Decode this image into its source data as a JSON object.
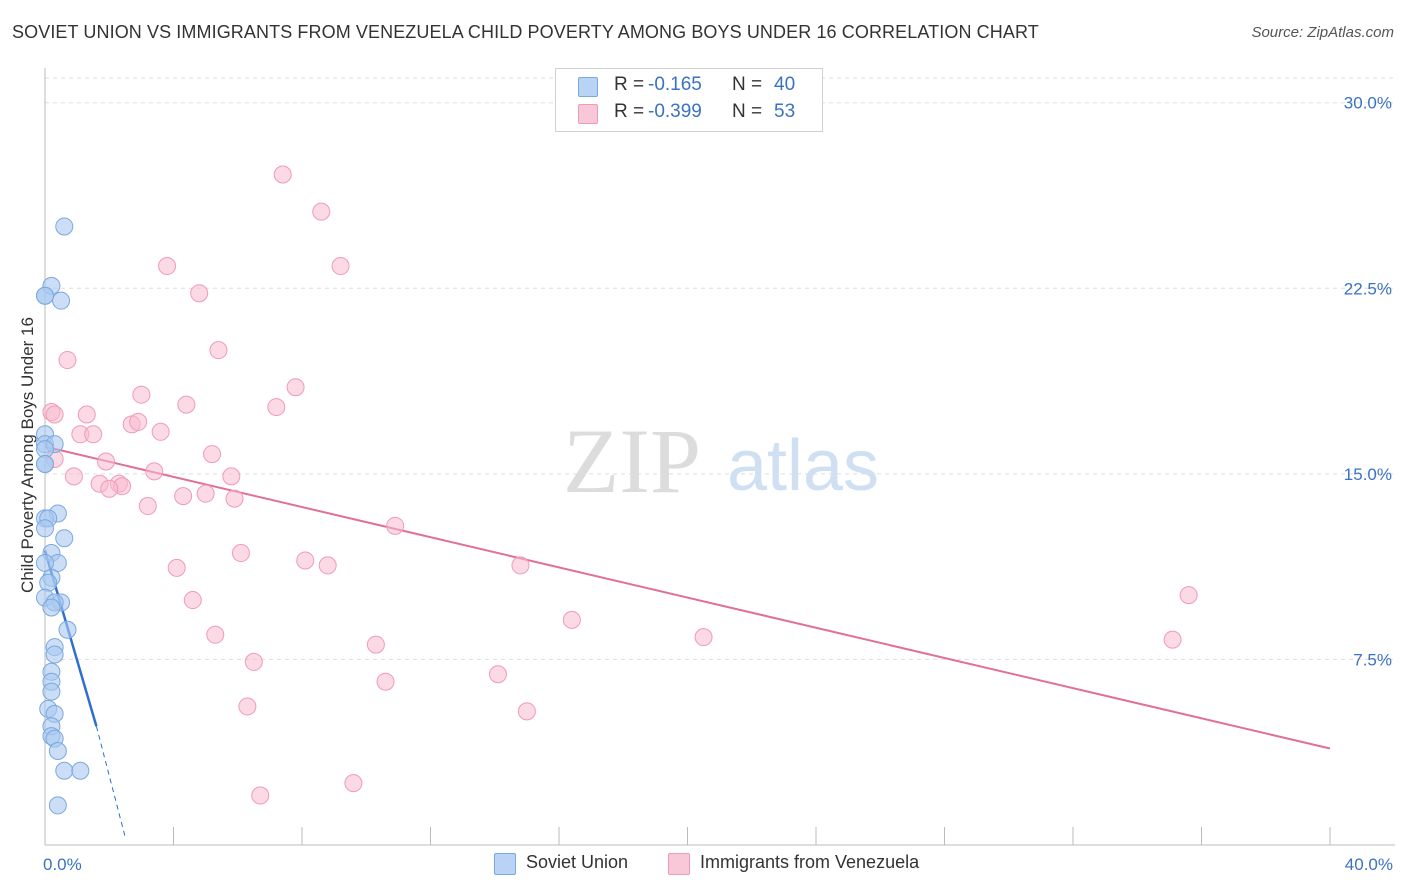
{
  "title": "SOVIET UNION VS IMMIGRANTS FROM VENEZUELA CHILD POVERTY AMONG BOYS UNDER 16 CORRELATION CHART",
  "source": "Source: ZipAtlas.com",
  "watermark": {
    "zip": "ZIP",
    "atlas": "atlas"
  },
  "stats": {
    "r_label": "R =",
    "n_label": "N =",
    "series1": {
      "r": "-0.165",
      "n": "40"
    },
    "series2": {
      "r": "-0.399",
      "n": "53"
    }
  },
  "legend": {
    "series1": "Soviet Union",
    "series2": "Immigrants from Venezuela"
  },
  "colors": {
    "soviet_fill": "#a9c8f0",
    "soviet_stroke": "#7aa8e0",
    "soviet_line": "#2f6fd0",
    "venezuela_fill": "#f7bcd0",
    "venezuela_stroke": "#f09ab8",
    "venezuela_line": "#e0709a",
    "axis_text": "#3a72c4",
    "grid": "#dddddd"
  },
  "chart_data": {
    "type": "scatter",
    "title": "SOVIET UNION VS IMMIGRANTS FROM VENEZUELA CHILD POVERTY AMONG BOYS UNDER 16 CORRELATION CHART",
    "xlabel": "",
    "ylabel": "Child Poverty Among Boys Under 16",
    "xlim": [
      0,
      40
    ],
    "ylim": [
      0,
      31
    ],
    "x_tick_labels": [
      "0.0%",
      "40.0%"
    ],
    "y_ticks": [
      7.5,
      15.0,
      22.5,
      30.0
    ],
    "y_tick_labels": [
      "7.5%",
      "15.0%",
      "22.5%",
      "30.0%"
    ],
    "grid": true,
    "series": [
      {
        "name": "Soviet Union",
        "r": -0.165,
        "n": 40,
        "points": [
          [
            0.6,
            25.0
          ],
          [
            0.2,
            22.6
          ],
          [
            0.0,
            22.2
          ],
          [
            0.5,
            22.0
          ],
          [
            0.0,
            22.2
          ],
          [
            0.0,
            16.6
          ],
          [
            0.0,
            16.2
          ],
          [
            0.3,
            16.2
          ],
          [
            0.0,
            16.0
          ],
          [
            0.0,
            15.4
          ],
          [
            0.0,
            15.4
          ],
          [
            0.4,
            13.4
          ],
          [
            0.0,
            13.2
          ],
          [
            0.1,
            13.2
          ],
          [
            0.0,
            12.8
          ],
          [
            0.6,
            12.4
          ],
          [
            0.2,
            11.8
          ],
          [
            0.4,
            11.4
          ],
          [
            0.0,
            11.4
          ],
          [
            0.2,
            10.8
          ],
          [
            0.1,
            10.6
          ],
          [
            0.0,
            10.0
          ],
          [
            0.5,
            9.8
          ],
          [
            0.3,
            9.8
          ],
          [
            0.2,
            9.6
          ],
          [
            0.7,
            8.7
          ],
          [
            0.3,
            8.0
          ],
          [
            0.3,
            7.7
          ],
          [
            0.2,
            7.0
          ],
          [
            0.2,
            6.6
          ],
          [
            0.2,
            6.2
          ],
          [
            0.1,
            5.5
          ],
          [
            0.3,
            5.3
          ],
          [
            0.2,
            4.8
          ],
          [
            0.2,
            4.4
          ],
          [
            0.3,
            4.3
          ],
          [
            0.4,
            3.8
          ],
          [
            0.6,
            3.0
          ],
          [
            1.1,
            3.0
          ],
          [
            0.4,
            1.6
          ]
        ],
        "trend": {
          "x0": 0.0,
          "y0": 11.9,
          "x1": 1.6,
          "y1": 4.8,
          "dash_to_x": 2.5,
          "dash_to_y": 0.3
        }
      },
      {
        "name": "Immigrants from Venezuela",
        "r": -0.399,
        "n": 53,
        "points": [
          [
            7.4,
            27.1
          ],
          [
            8.6,
            25.6
          ],
          [
            3.8,
            23.4
          ],
          [
            9.2,
            23.4
          ],
          [
            4.8,
            22.3
          ],
          [
            5.4,
            20.0
          ],
          [
            0.7,
            19.6
          ],
          [
            7.8,
            18.5
          ],
          [
            3.0,
            18.2
          ],
          [
            4.4,
            17.8
          ],
          [
            7.2,
            17.7
          ],
          [
            0.2,
            17.5
          ],
          [
            0.3,
            17.4
          ],
          [
            1.3,
            17.4
          ],
          [
            2.7,
            17.0
          ],
          [
            2.9,
            17.1
          ],
          [
            3.6,
            16.7
          ],
          [
            1.1,
            16.6
          ],
          [
            1.5,
            16.6
          ],
          [
            5.2,
            15.8
          ],
          [
            0.3,
            15.6
          ],
          [
            1.9,
            15.5
          ],
          [
            3.4,
            15.1
          ],
          [
            0.9,
            14.9
          ],
          [
            5.8,
            14.9
          ],
          [
            1.7,
            14.6
          ],
          [
            2.3,
            14.6
          ],
          [
            2.4,
            14.5
          ],
          [
            2.0,
            14.4
          ],
          [
            5.0,
            14.2
          ],
          [
            4.3,
            14.1
          ],
          [
            5.9,
            14.0
          ],
          [
            3.2,
            13.7
          ],
          [
            10.9,
            12.9
          ],
          [
            6.1,
            11.8
          ],
          [
            8.1,
            11.5
          ],
          [
            8.8,
            11.3
          ],
          [
            4.1,
            11.2
          ],
          [
            14.8,
            11.3
          ],
          [
            35.6,
            10.1
          ],
          [
            4.6,
            9.9
          ],
          [
            16.4,
            9.1
          ],
          [
            5.3,
            8.5
          ],
          [
            20.5,
            8.4
          ],
          [
            35.1,
            8.3
          ],
          [
            10.3,
            8.1
          ],
          [
            6.5,
            7.4
          ],
          [
            14.1,
            6.9
          ],
          [
            10.6,
            6.6
          ],
          [
            15.0,
            5.4
          ],
          [
            6.3,
            5.6
          ],
          [
            9.6,
            2.5
          ],
          [
            6.7,
            2.0
          ]
        ],
        "trend": {
          "x0": 0.0,
          "y0": 16.1,
          "x1": 40.0,
          "y1": 3.9
        }
      }
    ]
  }
}
